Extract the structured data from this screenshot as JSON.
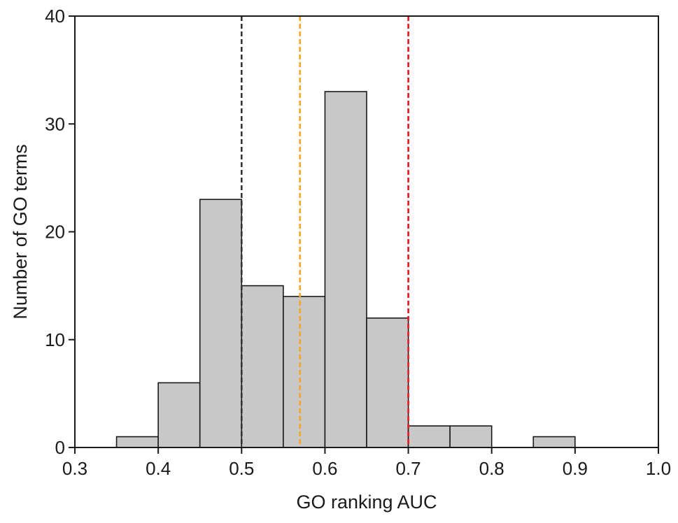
{
  "chart_data": {
    "type": "bar",
    "subtype": "histogram",
    "title": "",
    "xlabel": "GO ranking AUC",
    "ylabel": "Number of GO terms",
    "xlim": [
      0.3,
      1.0
    ],
    "ylim": [
      0,
      40
    ],
    "xticks": [
      "0.3",
      "0.4",
      "0.5",
      "0.6",
      "0.7",
      "0.8",
      "0.9",
      "1.0"
    ],
    "yticks": [
      "0",
      "10",
      "20",
      "30",
      "40"
    ],
    "bin_width": 0.05,
    "bins": [
      {
        "start": 0.35,
        "end": 0.4,
        "count": 1
      },
      {
        "start": 0.4,
        "end": 0.45,
        "count": 6
      },
      {
        "start": 0.45,
        "end": 0.5,
        "count": 23
      },
      {
        "start": 0.5,
        "end": 0.55,
        "count": 15
      },
      {
        "start": 0.55,
        "end": 0.6,
        "count": 14
      },
      {
        "start": 0.6,
        "end": 0.65,
        "count": 33
      },
      {
        "start": 0.65,
        "end": 0.7,
        "count": 12
      },
      {
        "start": 0.7,
        "end": 0.75,
        "count": 2
      },
      {
        "start": 0.75,
        "end": 0.8,
        "count": 2
      },
      {
        "start": 0.8,
        "end": 0.85,
        "count": 0
      },
      {
        "start": 0.85,
        "end": 0.9,
        "count": 1
      },
      {
        "start": 0.9,
        "end": 0.95,
        "count": 0
      },
      {
        "start": 0.95,
        "end": 1.0,
        "count": 0
      }
    ],
    "reference_lines": [
      {
        "x": 0.5,
        "color": "#333333",
        "style": "dashed"
      },
      {
        "x": 0.57,
        "color": "#f5a623",
        "style": "dashed"
      },
      {
        "x": 0.7,
        "color": "#e8141e",
        "style": "dashed"
      }
    ],
    "bar_color": "#c8c8c8",
    "bar_edge_color": "#1a1a1a",
    "grid": false,
    "legend": "none"
  }
}
